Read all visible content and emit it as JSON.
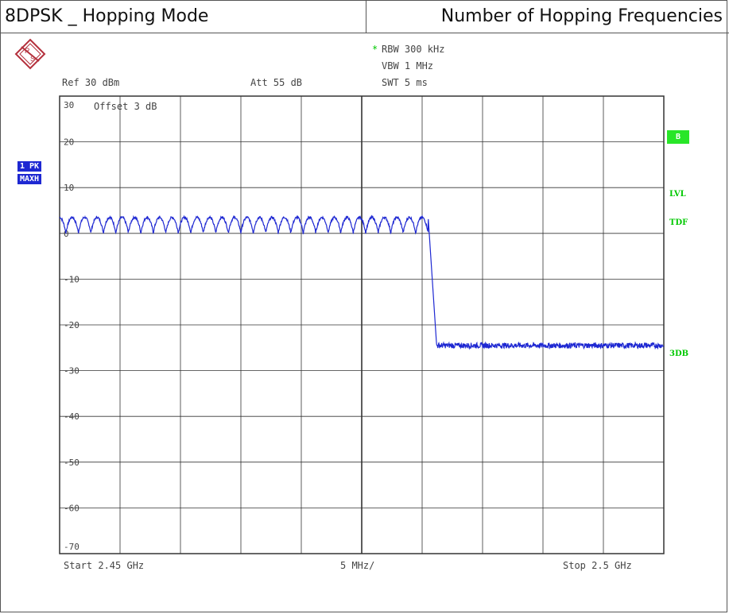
{
  "header": {
    "title_left": "8DPSK _ Hopping Mode",
    "title_right": "Number of Hopping Frequencies"
  },
  "settings": {
    "rbw_marker": "*",
    "rbw": "RBW 300 kHz",
    "vbw": "VBW 1 MHz",
    "swt": "SWT 5 ms",
    "ref": "Ref  30 dBm",
    "att": "Att  55 dB",
    "offset": "Offset  3 dB"
  },
  "badges": {
    "trace_mode": "1 PK",
    "trace_hold": "MAXH",
    "b": "B",
    "lvl": "LVL",
    "tdf": "TDF",
    "db3": "3DB"
  },
  "footer": {
    "start": "Start  2.45 GHz",
    "span_per_div": "5 MHz/",
    "stop": "Stop  2.5 GHz"
  },
  "colors": {
    "trace": "#1e28d2",
    "grid": "#333333",
    "annotation_green": "#00c800",
    "logo": "#b4303c"
  },
  "chart_data": {
    "type": "line",
    "title": "Number of Hopping Frequencies",
    "x_unit": "GHz",
    "y_unit": "dBm",
    "xlim": [
      2.45,
      2.5
    ],
    "ylim": [
      -70,
      30
    ],
    "ytick_labels": [
      "30",
      "20",
      "10",
      "0",
      "-10",
      "-20",
      "-30",
      "-40",
      "-50",
      "-60",
      "-70"
    ],
    "grid": true,
    "hopping_channels": 30,
    "series": [
      {
        "hop_peak_dbm": 3.5,
        "hop_trough_dbm": 0,
        "last_channel_ghz": 2.4805,
        "drop_end_ghz": 2.4812,
        "noise_floor_dbm": -24.5,
        "noise_floor_jitter_db": 0.6
      }
    ]
  }
}
